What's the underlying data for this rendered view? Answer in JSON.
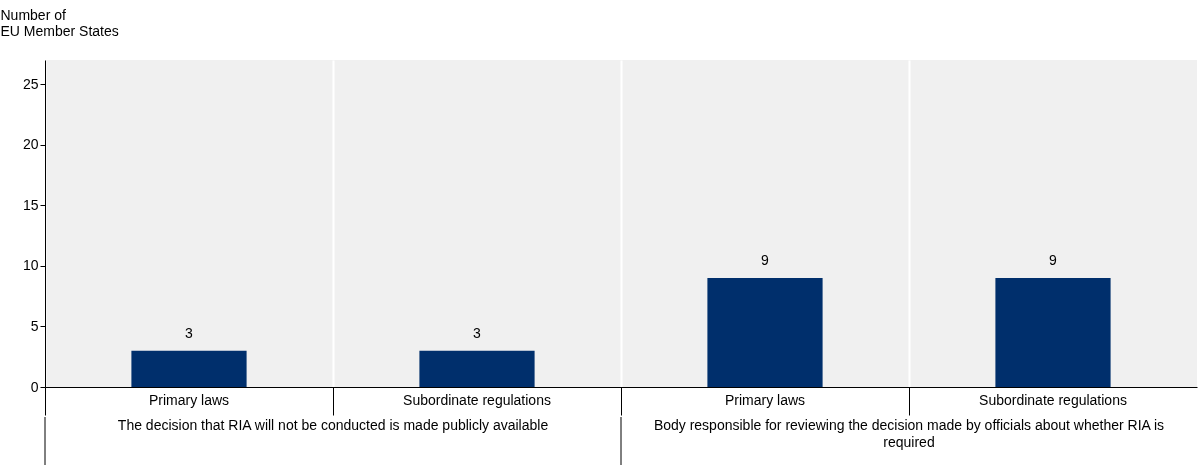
{
  "chart_data": {
    "type": "bar",
    "ylabel": "Number of EU Member States",
    "categories": [
      "Primary laws",
      "Subordinate regulations",
      "Primary laws",
      "Subordinate regulations"
    ],
    "values": [
      3,
      3,
      9,
      9
    ],
    "color": "#002f6c",
    "ylim": [
      0,
      27
    ],
    "yticks": [
      0,
      5,
      10,
      15,
      20,
      25
    ],
    "grid": "x",
    "data_labels": true,
    "annotations": [
      "The decision that RIA will not be conducted is made publicly available",
      "Body responsible for reviewing the decision made by officials about whether RIA is required"
    ]
  }
}
